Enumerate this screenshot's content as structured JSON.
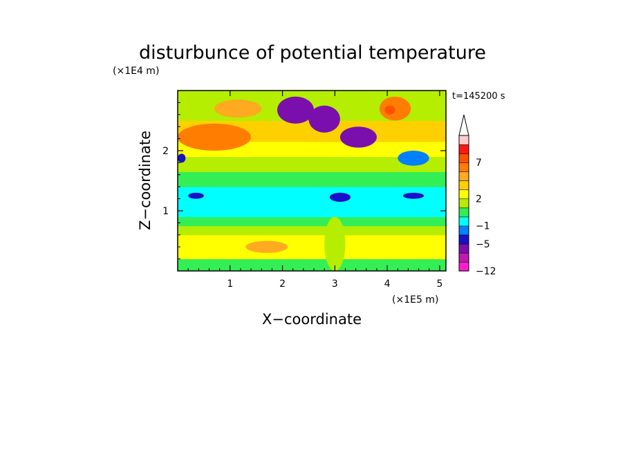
{
  "chart_data": {
    "type": "heatmap",
    "title": "disturbunce of potential temperature",
    "time_label": "t=145200 s",
    "xlabel": "X−coordinate",
    "ylabel": "Z−coordinate",
    "x_unit": "(×1E5 m)",
    "y_unit": "(×1E4 m)",
    "xlim": [
      0,
      5.12
    ],
    "ylim": [
      0,
      3.0
    ],
    "xticks": [
      1,
      2,
      3,
      4,
      5
    ],
    "yticks": [
      1,
      2
    ],
    "xtick_labels": [
      "1",
      "2",
      "3",
      "4",
      "5"
    ],
    "ytick_labels": [
      "1",
      "2"
    ],
    "colorbar": {
      "extend": "max",
      "tick_values": [
        7,
        2,
        -1,
        -5,
        -12
      ],
      "tick_labels": [
        "7",
        "2",
        "−1",
        "−5",
        "−12"
      ],
      "colors": [
        "#ff1fd0",
        "#c01ab0",
        "#7a0fae",
        "#1a10c8",
        "#0080ff",
        "#00ffff",
        "#33ee55",
        "#b5ee00",
        "#ffff00",
        "#ffd000",
        "#ffaa20",
        "#ff7d00",
        "#ff5000",
        "#ff1a10",
        "#ffcccc"
      ]
    },
    "regions": [
      {
        "x0": 0.0,
        "x1": 5.12,
        "z0": 0.0,
        "z1": 0.2,
        "value": 0.5
      },
      {
        "x0": 0.0,
        "x1": 5.12,
        "z0": 0.2,
        "z1": 0.6,
        "value": 2.5
      },
      {
        "x0": 0.0,
        "x1": 5.12,
        "z0": 0.6,
        "z1": 0.75,
        "value": 1.5
      },
      {
        "x0": 0.0,
        "x1": 5.12,
        "z0": 0.75,
        "z1": 0.9,
        "value": 0.2
      },
      {
        "x0": 0.0,
        "x1": 5.12,
        "z0": 0.9,
        "z1": 1.4,
        "value": -1.0
      },
      {
        "x0": 0.0,
        "x1": 5.12,
        "z0": 1.4,
        "z1": 1.65,
        "value": 0.8
      },
      {
        "x0": 0.0,
        "x1": 5.12,
        "z0": 1.65,
        "z1": 1.9,
        "value": 1.5
      },
      {
        "x0": 0.0,
        "x1": 5.12,
        "z0": 1.9,
        "z1": 2.15,
        "value": 2.5
      },
      {
        "x0": 0.0,
        "x1": 5.12,
        "z0": 2.15,
        "z1": 2.5,
        "value": 3.0
      },
      {
        "x0": 0.0,
        "x1": 5.12,
        "z0": 2.5,
        "z1": 3.0,
        "value": 1.5
      },
      {
        "x0": 0.0,
        "x1": 1.4,
        "z0": 2.0,
        "z1": 2.45,
        "value": 5.0
      },
      {
        "x0": 0.7,
        "x1": 1.6,
        "z0": 2.55,
        "z1": 2.85,
        "value": 4.0
      },
      {
        "x0": 1.9,
        "x1": 2.6,
        "z0": 2.45,
        "z1": 2.9,
        "value": -6.0
      },
      {
        "x0": 2.5,
        "x1": 3.1,
        "z0": 2.3,
        "z1": 2.75,
        "value": -6.0
      },
      {
        "x0": 3.1,
        "x1": 3.8,
        "z0": 2.05,
        "z1": 2.4,
        "value": -6.0
      },
      {
        "x0": 2.15,
        "x1": 2.35,
        "z0": 2.6,
        "z1": 2.75,
        "value": -8.0
      },
      {
        "x0": 2.65,
        "x1": 2.85,
        "z0": 2.45,
        "z1": 2.6,
        "value": -8.0
      },
      {
        "x0": 3.85,
        "x1": 4.45,
        "z0": 2.5,
        "z1": 2.9,
        "value": 6.0
      },
      {
        "x0": 3.95,
        "x1": 4.15,
        "z0": 2.6,
        "z1": 2.75,
        "value": 8.0
      },
      {
        "x0": 4.2,
        "x1": 4.8,
        "z0": 1.75,
        "z1": 2.0,
        "value": -3.0
      },
      {
        "x0": 4.5,
        "x1": 5.12,
        "z0": 2.2,
        "z1": 2.5,
        "value": 3.5
      },
      {
        "x0": 0.0,
        "x1": 0.15,
        "z0": 1.8,
        "z1": 1.95,
        "value": -5.0
      },
      {
        "x0": 0.2,
        "x1": 0.5,
        "z0": 1.2,
        "z1": 1.3,
        "value": -5.0
      },
      {
        "x0": 2.9,
        "x1": 3.3,
        "z0": 1.15,
        "z1": 1.3,
        "value": -5.0
      },
      {
        "x0": 4.3,
        "x1": 4.7,
        "z0": 1.2,
        "z1": 1.3,
        "value": -5.0
      },
      {
        "x0": 2.8,
        "x1": 3.2,
        "z0": 0.0,
        "z1": 0.9,
        "value": 1.0
      },
      {
        "x0": 1.3,
        "x1": 2.1,
        "z0": 0.3,
        "z1": 0.5,
        "value": 4.0
      }
    ]
  }
}
